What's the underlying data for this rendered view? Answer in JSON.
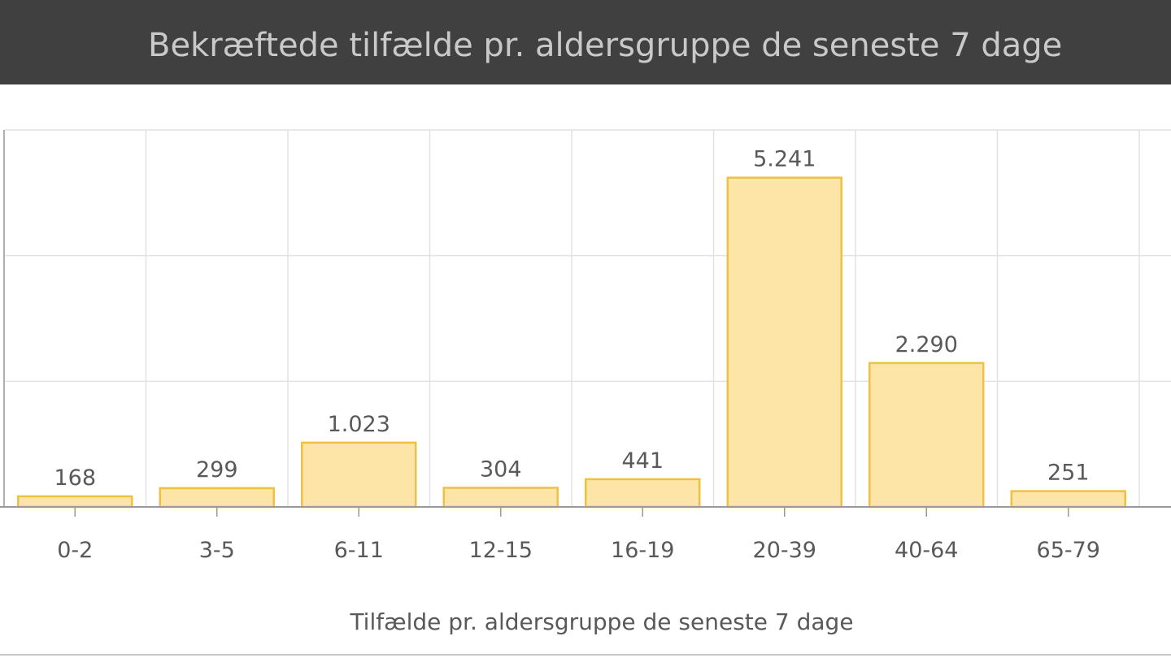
{
  "header": {
    "title": "Bekræftede tilfælde pr. aldersgruppe de seneste 7 dage"
  },
  "colors": {
    "header_bg": "#404040",
    "header_text": "#c9c9c9",
    "bar_fill": "#fde5a8",
    "bar_stroke": "#f0c040",
    "grid": "#e2e2e2",
    "axis": "#9a9a9a",
    "label_text": "#595959"
  },
  "chart_data": {
    "type": "bar",
    "categories": [
      "0-2",
      "3-5",
      "6-11",
      "12-15",
      "16-19",
      "20-39",
      "40-64",
      "65-79"
    ],
    "values": [
      168,
      299,
      1023,
      304,
      441,
      5241,
      2290,
      251
    ],
    "value_labels": [
      "168",
      "299",
      "1.023",
      "304",
      "441",
      "5.241",
      "2.290",
      "251"
    ],
    "xlabel": "Tilfælde pr. aldersgruppe de seneste 7 dage",
    "ylim": [
      0,
      6000
    ],
    "grid": true,
    "legend": "none"
  }
}
